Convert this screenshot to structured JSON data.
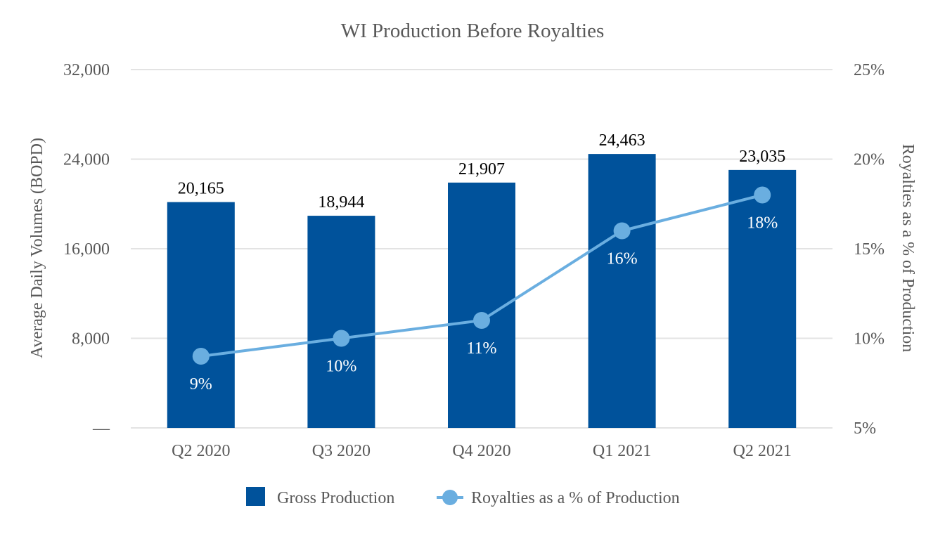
{
  "chart_data": {
    "type": "bar",
    "title": "WI Production Before Royalties",
    "categories": [
      "Q2 2020",
      "Q3 2020",
      "Q4 2020",
      "Q1 2021",
      "Q2 2021"
    ],
    "series": [
      {
        "name": "Gross Production",
        "type": "bar",
        "axis": "left",
        "values": [
          20165,
          18944,
          21907,
          24463,
          23035
        ],
        "labels": [
          "20,165",
          "18,944",
          "21,907",
          "24,463",
          "23,035"
        ],
        "color": "#00529b"
      },
      {
        "name": "Royalties as a % of Production",
        "type": "line",
        "axis": "right",
        "values": [
          9,
          10,
          11,
          16,
          18
        ],
        "labels": [
          "9%",
          "10%",
          "11%",
          "16%",
          "18%"
        ],
        "color": "#6aaee0"
      }
    ],
    "ylabel": "Average Daily Volumes (BOPD)",
    "y2label": "Royalties as a % of Production",
    "ylim": [
      0,
      32000
    ],
    "y2lim": [
      5,
      25
    ],
    "yticks": [
      "—",
      "8,000",
      "16,000",
      "24,000",
      "32,000"
    ],
    "y2ticks": [
      "5%",
      "10%",
      "15%",
      "20%",
      "25%"
    ],
    "grid": true,
    "legend_position": "bottom"
  }
}
